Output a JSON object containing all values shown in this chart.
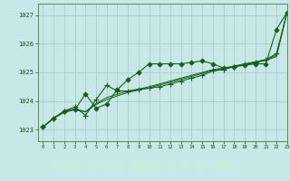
{
  "title": "Graphe pression niveau de la mer (hPa)",
  "background_color": "#c8e8e8",
  "grid_color": "#a8cece",
  "line_color": "#1a5c1a",
  "footer_bg": "#1a5c1a",
  "footer_text_color": "#c8f0c8",
  "xlim": [
    -0.5,
    23
  ],
  "ylim": [
    1022.6,
    1027.4
  ],
  "yticks": [
    1023,
    1024,
    1025,
    1026,
    1027
  ],
  "xticks": [
    0,
    1,
    2,
    3,
    4,
    5,
    6,
    7,
    8,
    9,
    10,
    11,
    12,
    13,
    14,
    15,
    16,
    17,
    18,
    19,
    20,
    21,
    22,
    23
  ],
  "series": [
    {
      "x": [
        0,
        1,
        2,
        3,
        4,
        5,
        6,
        7,
        8,
        9,
        10,
        11,
        12,
        13,
        14,
        15,
        16,
        17,
        18,
        19,
        20,
        21,
        22,
        23
      ],
      "y": [
        1023.1,
        1023.4,
        1023.65,
        1023.7,
        1024.25,
        1023.75,
        1023.9,
        1024.4,
        1024.75,
        1025.0,
        1025.3,
        1025.3,
        1025.3,
        1025.3,
        1025.35,
        1025.4,
        1025.3,
        1025.15,
        1025.2,
        1025.25,
        1025.3,
        1025.3,
        1026.5,
        1027.1
      ],
      "marker": "D",
      "markersize": 2.5,
      "lw": 0.8
    },
    {
      "x": [
        0,
        1,
        2,
        3,
        4,
        5,
        6,
        7,
        8,
        9,
        10,
        11,
        12,
        13,
        14,
        15,
        16,
        17,
        18,
        19,
        20,
        21,
        22,
        23
      ],
      "y": [
        1023.1,
        1023.4,
        1023.65,
        1023.8,
        1023.5,
        1024.05,
        1024.55,
        1024.35,
        1024.35,
        1024.4,
        1024.45,
        1024.5,
        1024.6,
        1024.7,
        1024.8,
        1024.9,
        1025.05,
        1025.1,
        1025.2,
        1025.28,
        1025.35,
        1025.45,
        1025.65,
        1027.1
      ],
      "marker": "+",
      "markersize": 4,
      "lw": 0.8
    },
    {
      "x": [
        0,
        1,
        2,
        3,
        4,
        5,
        6,
        7,
        8,
        9,
        10,
        11,
        12,
        13,
        14,
        15,
        16,
        17,
        18,
        19,
        20,
        21,
        22,
        23
      ],
      "y": [
        1023.1,
        1023.4,
        1023.6,
        1023.7,
        1023.62,
        1023.88,
        1024.05,
        1024.18,
        1024.3,
        1024.38,
        1024.46,
        1024.56,
        1024.66,
        1024.76,
        1024.86,
        1024.96,
        1025.08,
        1025.13,
        1025.19,
        1025.27,
        1025.34,
        1025.42,
        1025.55,
        1027.1
      ],
      "marker": null,
      "markersize": 0,
      "lw": 0.7
    },
    {
      "x": [
        0,
        1,
        2,
        3,
        4,
        5,
        6,
        7,
        8,
        9,
        10,
        11,
        12,
        13,
        14,
        15,
        16,
        17,
        18,
        19,
        20,
        21,
        22,
        23
      ],
      "y": [
        1023.1,
        1023.4,
        1023.63,
        1023.73,
        1023.63,
        1023.92,
        1024.12,
        1024.24,
        1024.35,
        1024.42,
        1024.5,
        1024.6,
        1024.7,
        1024.8,
        1024.9,
        1025.0,
        1025.1,
        1025.15,
        1025.22,
        1025.3,
        1025.37,
        1025.44,
        1025.6,
        1027.1
      ],
      "marker": null,
      "markersize": 0,
      "lw": 0.7
    }
  ]
}
